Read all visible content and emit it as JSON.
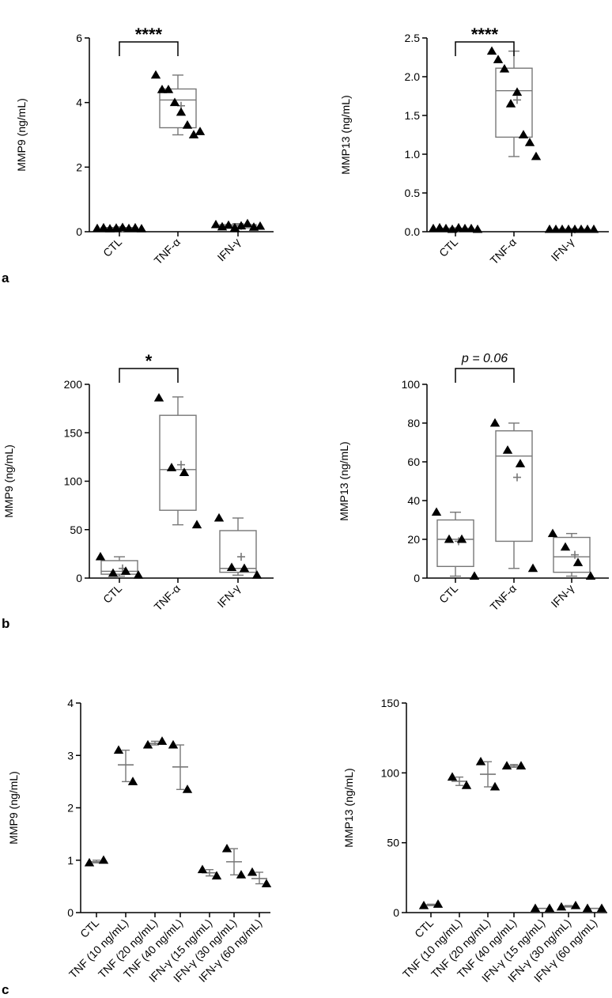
{
  "panel_labels": [
    "a",
    "b",
    "c"
  ],
  "chart_data": [
    {
      "id": "a-left",
      "panel": "a",
      "type": "box",
      "ylabel": "MMP9 (ng/mL)",
      "ylim": [
        0,
        6
      ],
      "yticks": [
        "0",
        "2",
        "4",
        "6"
      ],
      "categories": [
        "CTL",
        "TNF-α",
        "IFN-γ"
      ],
      "boxes": [
        {
          "category": "CTL",
          "min": 0.08,
          "q1": 0.09,
          "median": 0.11,
          "q3": 0.13,
          "max": 0.15,
          "mean": 0.11,
          "points": [
            0.1,
            0.12,
            0.09,
            0.11,
            0.13,
            0.1,
            0.12,
            0.09
          ]
        },
        {
          "category": "TNF-α",
          "min": 3.0,
          "q1": 3.22,
          "median": 4.08,
          "q3": 4.42,
          "max": 4.85,
          "mean": 3.9,
          "points": [
            4.85,
            4.4,
            4.4,
            4.0,
            3.7,
            3.3,
            3.0,
            3.1
          ]
        },
        {
          "category": "IFN-γ",
          "min": 0.1,
          "q1": 0.12,
          "median": 0.18,
          "q3": 0.22,
          "max": 0.25,
          "mean": 0.18,
          "points": [
            0.22,
            0.15,
            0.2,
            0.12,
            0.18,
            0.25,
            0.14,
            0.17
          ]
        }
      ],
      "significance": {
        "from": "CTL",
        "to": "TNF-α",
        "label": "****",
        "italic": false
      }
    },
    {
      "id": "a-right",
      "panel": "a",
      "type": "box",
      "ylabel": "MMP13 (ng/mL)",
      "ylim": [
        0,
        2.5
      ],
      "yticks": [
        "0.0",
        "0.5",
        "1.0",
        "1.5",
        "2.0",
        "2.5"
      ],
      "categories": [
        "CTL",
        "TNF-α",
        "IFN-γ"
      ],
      "boxes": [
        {
          "category": "CTL",
          "min": 0.03,
          "q1": 0.035,
          "median": 0.04,
          "q3": 0.045,
          "max": 0.05,
          "mean": 0.04,
          "points": [
            0.04,
            0.05,
            0.04,
            0.03,
            0.05,
            0.04,
            0.04,
            0.03
          ]
        },
        {
          "category": "TNF-α",
          "min": 0.97,
          "q1": 1.22,
          "median": 1.82,
          "q3": 2.11,
          "max": 2.33,
          "mean": 1.7,
          "points": [
            2.33,
            2.22,
            2.1,
            1.65,
            1.8,
            1.25,
            1.15,
            0.97
          ]
        },
        {
          "category": "IFN-γ",
          "min": 0.02,
          "q1": 0.025,
          "median": 0.03,
          "q3": 0.035,
          "max": 0.04,
          "mean": 0.03,
          "points": [
            0.03,
            0.03,
            0.03,
            0.03,
            0.03,
            0.03,
            0.03,
            0.03
          ]
        }
      ],
      "significance": {
        "from": "CTL",
        "to": "TNF-α",
        "label": "****",
        "italic": false
      }
    },
    {
      "id": "b-left",
      "panel": "b",
      "type": "box",
      "ylabel": "MMP9 (ng/mL)",
      "ylim": [
        0,
        200
      ],
      "yticks": [
        "0",
        "50",
        "100",
        "150",
        "200"
      ],
      "categories": [
        "CTL",
        "TNF-α",
        "IFN-γ"
      ],
      "boxes": [
        {
          "category": "CTL",
          "min": 2,
          "q1": 4,
          "median": 7,
          "q3": 18,
          "max": 22,
          "mean": 10,
          "points": [
            22,
            5,
            7,
            3
          ]
        },
        {
          "category": "TNF-α",
          "min": 55,
          "q1": 70,
          "median": 112,
          "q3": 168,
          "max": 187,
          "mean": 117,
          "points": [
            186,
            114,
            109,
            55
          ]
        },
        {
          "category": "IFN-γ",
          "min": 3,
          "q1": 6,
          "median": 10,
          "q3": 49,
          "max": 62,
          "mean": 22,
          "points": [
            62,
            11,
            10,
            3
          ]
        }
      ],
      "significance": {
        "from": "CTL",
        "to": "TNF-α",
        "label": "*",
        "italic": false
      }
    },
    {
      "id": "b-right",
      "panel": "b",
      "type": "box",
      "ylabel": "MMP13 (ng/mL)",
      "ylim": [
        0,
        100
      ],
      "yticks": [
        "0",
        "20",
        "40",
        "60",
        "80",
        "100"
      ],
      "categories": [
        "CTL",
        "TNF-α",
        "IFN-γ"
      ],
      "boxes": [
        {
          "category": "CTL",
          "min": 1,
          "q1": 6,
          "median": 20,
          "q3": 30,
          "max": 34,
          "mean": 19,
          "points": [
            34,
            20,
            20,
            1
          ]
        },
        {
          "category": "TNF-α",
          "min": 5,
          "q1": 19,
          "median": 63,
          "q3": 76,
          "max": 80,
          "mean": 52,
          "points": [
            80,
            66,
            59,
            5
          ]
        },
        {
          "category": "IFN-γ",
          "min": 1,
          "q1": 3,
          "median": 11,
          "q3": 21,
          "max": 23,
          "mean": 12,
          "points": [
            23,
            16,
            8,
            1
          ]
        }
      ],
      "significance": {
        "from": "CTL",
        "to": "TNF-α",
        "label": "p = 0.06",
        "italic": true
      }
    },
    {
      "id": "c-left",
      "panel": "c",
      "type": "scatter",
      "ylabel": "MMP9 (ng/mL)",
      "ylim": [
        0,
        4
      ],
      "yticks": [
        "0",
        "1",
        "2",
        "3",
        "4"
      ],
      "categories": [
        "CTL",
        "TNF (10 ng/mL)",
        "TNF (20 ng/mL)",
        "TNF (40 ng/mL)",
        "IFN-γ (15 ng/mL)",
        "IFN-γ (30 ng/mL)",
        "IFN-γ (60 ng/mL)"
      ],
      "groups": [
        {
          "category": "CTL",
          "points": [
            0.95,
            1.0
          ],
          "mean": 0.97,
          "error": [
            0.95,
            1.0
          ]
        },
        {
          "category": "TNF (10 ng/mL)",
          "points": [
            3.1,
            2.5
          ],
          "mean": 2.82,
          "error": [
            2.5,
            3.1
          ]
        },
        {
          "category": "TNF (20 ng/mL)",
          "points": [
            3.2,
            3.27
          ],
          "mean": 3.23,
          "error": [
            3.2,
            3.27
          ]
        },
        {
          "category": "TNF (40 ng/mL)",
          "points": [
            3.2,
            2.35
          ],
          "mean": 2.78,
          "error": [
            2.35,
            3.2
          ]
        },
        {
          "category": "IFN-γ (15 ng/mL)",
          "points": [
            0.82,
            0.7
          ],
          "mean": 0.76,
          "error": [
            0.7,
            0.82
          ]
        },
        {
          "category": "IFN-γ (30 ng/mL)",
          "points": [
            1.22,
            0.72
          ],
          "mean": 0.97,
          "error": [
            0.72,
            1.22
          ]
        },
        {
          "category": "IFN-γ (60 ng/mL)",
          "points": [
            0.77,
            0.55
          ],
          "mean": 0.65,
          "error": [
            0.55,
            0.77
          ]
        }
      ]
    },
    {
      "id": "c-right",
      "panel": "c",
      "type": "scatter",
      "ylabel": "MMP13 (ng/mL)",
      "ylim": [
        0,
        150
      ],
      "yticks": [
        "0",
        "50",
        "100",
        "150"
      ],
      "categories": [
        "CTL",
        "TNF (10 ng/mL)",
        "TNF (20 ng/mL)",
        "TNF (40 ng/mL)",
        "IFN-γ (15 ng/mL)",
        "IFN-γ (30 ng/mL)",
        "IFN-γ (60 ng/mL)"
      ],
      "groups": [
        {
          "category": "CTL",
          "points": [
            5,
            6
          ],
          "mean": 5.5,
          "error": [
            5,
            6
          ]
        },
        {
          "category": "TNF (10 ng/mL)",
          "points": [
            97,
            91
          ],
          "mean": 94,
          "error": [
            91,
            97
          ]
        },
        {
          "category": "TNF (20 ng/mL)",
          "points": [
            108,
            90
          ],
          "mean": 99,
          "error": [
            90,
            108
          ]
        },
        {
          "category": "TNF (40 ng/mL)",
          "points": [
            105,
            105
          ],
          "mean": 105,
          "error": [
            104,
            106
          ]
        },
        {
          "category": "IFN-γ (15 ng/mL)",
          "points": [
            3,
            3
          ],
          "mean": 3,
          "error": [
            3,
            3
          ]
        },
        {
          "category": "IFN-γ (30 ng/mL)",
          "points": [
            4,
            5
          ],
          "mean": 4.5,
          "error": [
            4,
            5
          ]
        },
        {
          "category": "IFN-γ (60 ng/mL)",
          "points": [
            3,
            3
          ],
          "mean": 3,
          "error": [
            3,
            3
          ]
        }
      ]
    }
  ]
}
